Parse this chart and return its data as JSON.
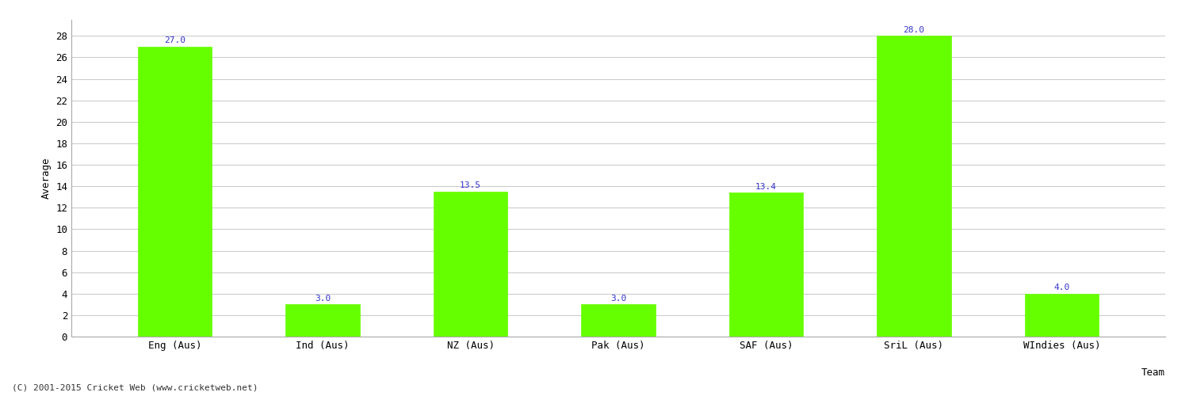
{
  "categories": [
    "Eng (Aus)",
    "Ind (Aus)",
    "NZ (Aus)",
    "Pak (Aus)",
    "SAF (Aus)",
    "SriL (Aus)",
    "WIndies (Aus)"
  ],
  "values": [
    27.0,
    3.0,
    13.5,
    3.0,
    13.4,
    28.0,
    4.0
  ],
  "bar_color": "#66ff00",
  "bar_edge_color": "#66ff00",
  "value_color": "#3333cc",
  "ylabel": "Average",
  "xlabel": "Team",
  "ylim": [
    0,
    29.5
  ],
  "yticks": [
    0,
    2,
    4,
    6,
    8,
    10,
    12,
    14,
    16,
    18,
    20,
    22,
    24,
    26,
    28
  ],
  "background_color": "#ffffff",
  "grid_color": "#cccccc",
  "footnote": "(C) 2001-2015 Cricket Web (www.cricketweb.net)",
  "label_fontsize": 9,
  "tick_fontsize": 9,
  "value_fontsize": 8,
  "footnote_fontsize": 8
}
